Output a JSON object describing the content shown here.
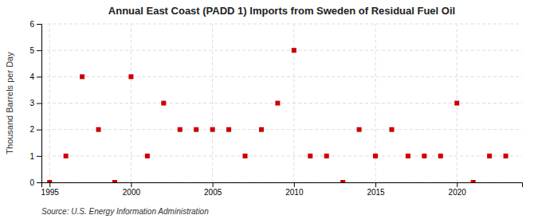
{
  "chart_data": {
    "type": "scatter",
    "title": "Annual East Coast (PADD 1) Imports from Sweden of Residual Fuel Oil",
    "ylabel": "Thousand Barrels per Day",
    "annotation": "Source: U.S. Energy Information Administration",
    "x": [
      1995,
      1996,
      1997,
      1998,
      1999,
      2000,
      2001,
      2002,
      2003,
      2004,
      2005,
      2006,
      2007,
      2008,
      2009,
      2010,
      2011,
      2012,
      2013,
      2014,
      2015,
      2016,
      2017,
      2018,
      2019,
      2020,
      2021,
      2022,
      2023
    ],
    "values": [
      0,
      1,
      4,
      2,
      0,
      4,
      1,
      3,
      2,
      2,
      2,
      2,
      1,
      2,
      3,
      5,
      1,
      1,
      0,
      2,
      1,
      2,
      1,
      1,
      1,
      3,
      0,
      1,
      1
    ],
    "color": "#cc0000",
    "marker": "square",
    "xlim": [
      1994.5,
      2024
    ],
    "ylim": [
      0,
      6
    ],
    "xticks": [
      1995,
      2000,
      2005,
      2010,
      2015,
      2020
    ],
    "yticks": [
      0,
      1,
      2,
      3,
      4,
      5,
      6
    ],
    "grid": true
  }
}
